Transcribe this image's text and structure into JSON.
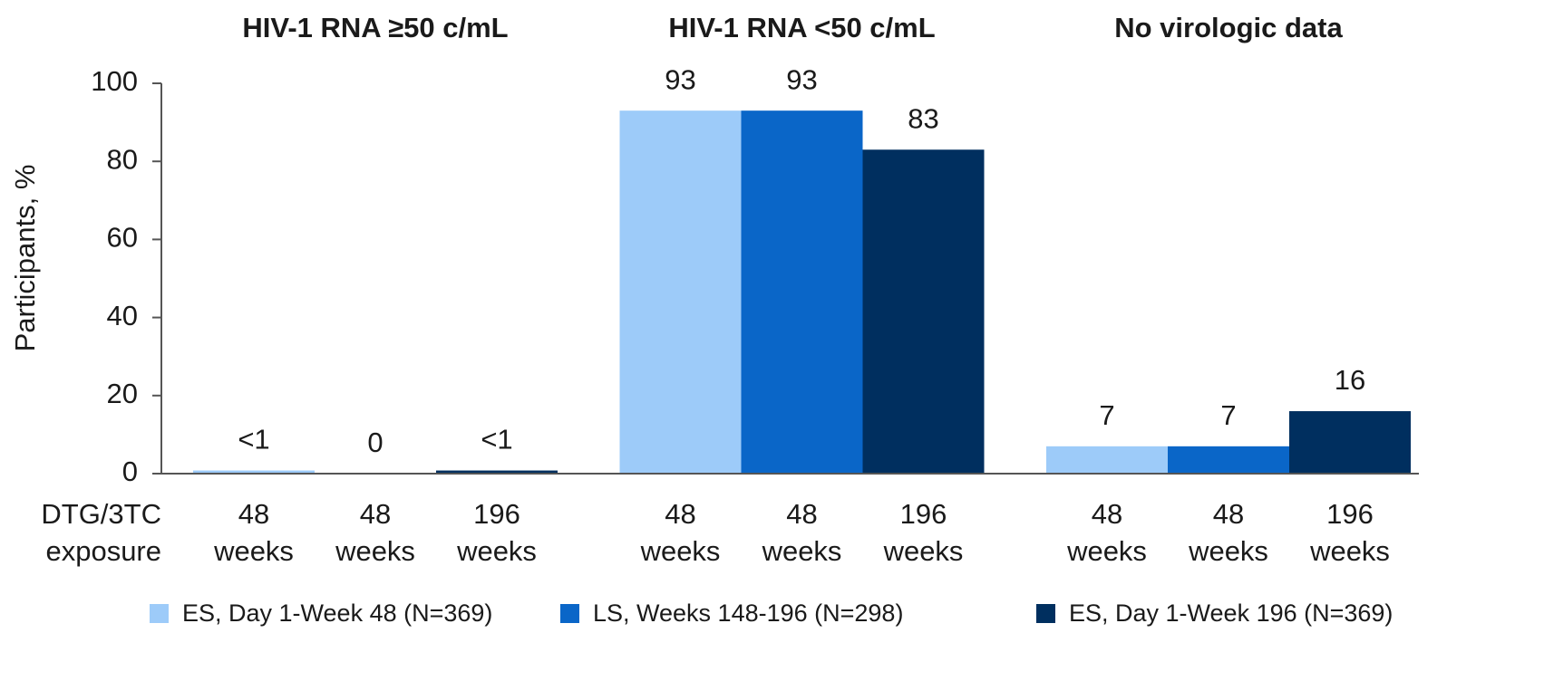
{
  "chart_data": {
    "type": "bar",
    "categories": [
      "HIV-1 RNA ≥50 c/mL",
      "HIV-1 RNA <50 c/mL",
      "No virologic data"
    ],
    "y_label": "Participants, %",
    "exposure_label": [
      "DTG/3TC",
      "exposure"
    ],
    "series": [
      {
        "name": "ES, Day 1-Week 48 (N=369)",
        "color": "#9dcbf9",
        "exposure": [
          "48",
          "weeks"
        ],
        "values": [
          0.8,
          93,
          7
        ],
        "value_labels": [
          "<1",
          "93",
          "7"
        ]
      },
      {
        "name": "LS, Weeks 148-196 (N=298)",
        "color": "#0a66c8",
        "exposure": [
          "48",
          "weeks"
        ],
        "values": [
          0,
          93,
          7
        ],
        "value_labels": [
          "0",
          "93",
          "7"
        ]
      },
      {
        "name": "ES, Day 1-Week 196 (N=369)",
        "color": "#002f5f",
        "exposure": [
          "196",
          "weeks"
        ],
        "values": [
          0.8,
          83,
          16
        ],
        "value_labels": [
          "<1",
          "83",
          "16"
        ]
      }
    ],
    "ylim": [
      0,
      100
    ],
    "yticks": [
      0,
      20,
      40,
      60,
      80,
      100
    ],
    "grid": false,
    "legend": "bottom"
  }
}
